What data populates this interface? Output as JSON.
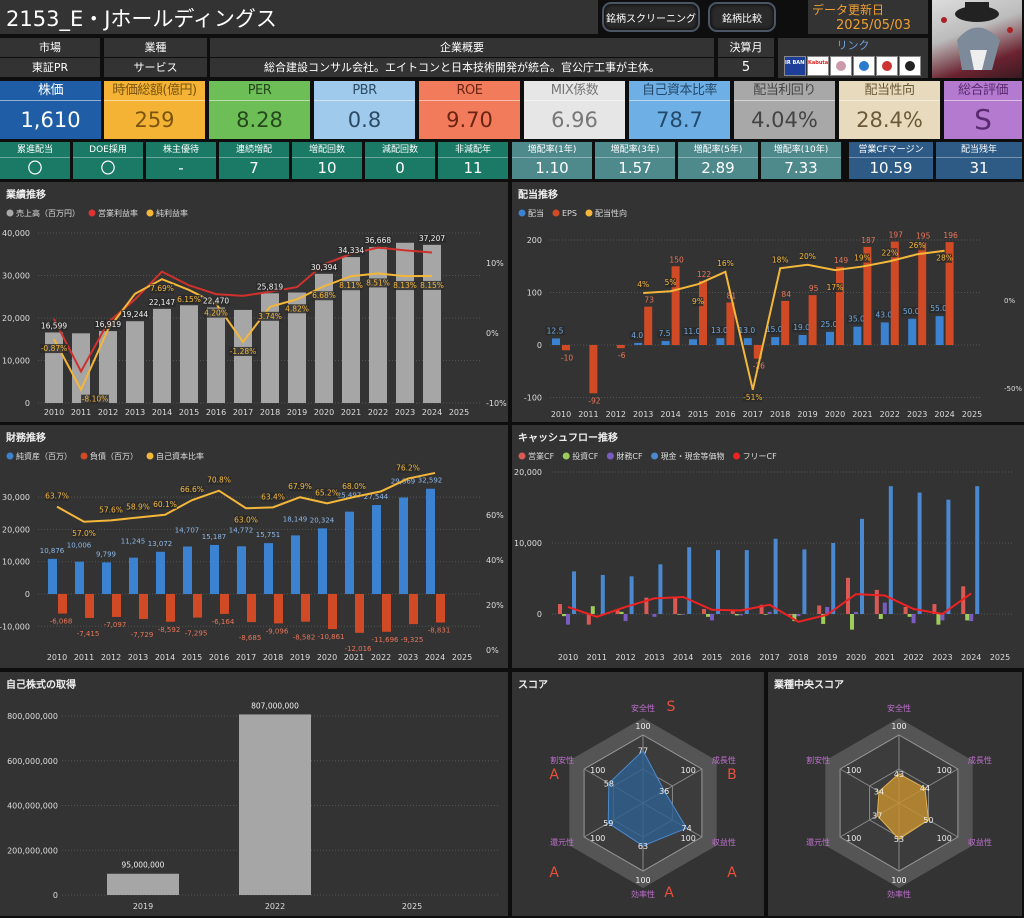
{
  "header": {
    "title": "2153_E・Jホールディングス",
    "screening_button": "銘柄スクリーニング",
    "compare_button": "銘柄比較",
    "update_label": "データ更新日",
    "update_date": "2025/05/03"
  },
  "info": {
    "market_label": "市場",
    "market": "東証PR",
    "industry_label": "業種",
    "industry": "サービス",
    "overview_label": "企業概要",
    "overview": "総合建設コンサル会社。エイトコンと日本技術開発が統合。官公庁工事が主体。",
    "fiscal_label": "決算月",
    "fiscal": "5",
    "links_label": "リンク",
    "links": [
      "IR BANK",
      "Kabutan",
      "minkabu",
      "chart",
      "nikkei",
      "kabutan-yutai"
    ]
  },
  "metrics": [
    {
      "label": "株価",
      "value": "1,610",
      "bg": "#1f5ea6",
      "fg": "#ffffff"
    },
    {
      "label": "時価総額(億円)",
      "value": "259",
      "bg": "#f4b334",
      "fg": "#7a5410"
    },
    {
      "label": "PER",
      "value": "8.28",
      "bg": "#6dbe57",
      "fg": "#24481c"
    },
    {
      "label": "PBR",
      "value": "0.8",
      "bg": "#9fcaeb",
      "fg": "#2c4b66"
    },
    {
      "label": "ROE",
      "value": "9.70",
      "bg": "#f27b5c",
      "fg": "#6b2414"
    },
    {
      "label": "MIX係数",
      "value": "6.96",
      "bg": "#e6e6e6",
      "fg": "#777777"
    },
    {
      "label": "自己資本比率",
      "value": "78.7",
      "bg": "#6eb0e6",
      "fg": "#24486a"
    },
    {
      "label": "配当利回り",
      "value": "4.04%",
      "bg": "#a8a8a8",
      "fg": "#444444"
    },
    {
      "label": "配当性向",
      "value": "28.4%",
      "bg": "#e8dbbd",
      "fg": "#6a5a38"
    },
    {
      "label": "総合評価",
      "value": "S",
      "bg": "#b47ad0",
      "fg": "#5a2a70"
    }
  ],
  "stats": [
    {
      "label": "累進配当",
      "value": "〇",
      "bg": "#1b7a66"
    },
    {
      "label": "DOE採用",
      "value": "〇",
      "bg": "#1b7a66"
    },
    {
      "label": "株主優待",
      "value": "-",
      "bg": "#1b7a66"
    },
    {
      "label": "連続増配",
      "value": "7",
      "bg": "#1b7a66"
    },
    {
      "label": "増配回数",
      "value": "10",
      "bg": "#1b7a66"
    },
    {
      "label": "減配回数",
      "value": "0",
      "bg": "#1b7a66"
    },
    {
      "label": "非減配年",
      "value": "11",
      "bg": "#1b7a66"
    },
    {
      "label": "増配率(1年)",
      "value": "1.10",
      "bg": "#4e898c"
    },
    {
      "label": "増配率(3年)",
      "value": "1.57",
      "bg": "#4e898c"
    },
    {
      "label": "増配率(5年)",
      "value": "2.89",
      "bg": "#4e898c"
    },
    {
      "label": "増配率(10年)",
      "value": "7.33",
      "bg": "#4e898c"
    },
    {
      "label": "営業CFマージン",
      "value": "10.59",
      "bg": "#2e5a86"
    },
    {
      "label": "配当残年",
      "value": "31",
      "bg": "#2e5a86"
    }
  ],
  "chart_data": [
    {
      "id": "performance",
      "type": "bar",
      "title": "業績推移",
      "categories": [
        "2010",
        "2011",
        "2012",
        "2013",
        "2014",
        "2015",
        "2016",
        "2017",
        "2018",
        "2019",
        "2020",
        "2021",
        "2022",
        "2023",
        "2024",
        "2025"
      ],
      "legend": [
        "売上高（百万円）",
        "営業利益率",
        "純利益率"
      ],
      "yticks": [
        "0",
        "10,000",
        "20,000",
        "30,000",
        "40,000"
      ],
      "ylim": [
        0,
        40000
      ],
      "y2ticks": [
        "-10%",
        "0%",
        "10%"
      ],
      "y2lim": [
        -10,
        10
      ],
      "sales": [
        16599,
        16400,
        16919,
        19244,
        22147,
        23000,
        22470,
        21900,
        25819,
        26000,
        30394,
        34334,
        36668,
        37700,
        37207,
        null
      ],
      "sales_labels": [
        "16,599",
        "",
        "16,919",
        "19,244",
        "22,147",
        "",
        "22,470",
        "",
        "25,819",
        "",
        "30,394",
        "34,334",
        "36,668",
        "",
        "37,207",
        ""
      ],
      "op_margin": [
        2.01,
        -5.5,
        1.5,
        4.8,
        8.77,
        6.81,
        5.56,
        5.3,
        5.9,
        6.56,
        9.82,
        11.3,
        12.2,
        11.8,
        11.5,
        null
      ],
      "net_margin": [
        -0.87,
        -8.1,
        0.5,
        5.6,
        7.69,
        6.15,
        4.2,
        -1.28,
        3.74,
        4.82,
        6.68,
        8.11,
        8.51,
        8.13,
        8.15,
        null
      ],
      "net_labels": [
        "-0.87%",
        "-8.10%",
        "",
        "",
        "7.69%",
        "6.15%",
        "4.20%",
        "-1.28%",
        "3.74%",
        "4.82%",
        "6.68%",
        "8.11%",
        "8.51%",
        "8.13%",
        "8.15%",
        ""
      ]
    },
    {
      "id": "dividend",
      "type": "bar",
      "title": "配当推移",
      "categories": [
        "2010",
        "2011",
        "2012",
        "2013",
        "2014",
        "2015",
        "2016",
        "2017",
        "2018",
        "2019",
        "2020",
        "2021",
        "2022",
        "2023",
        "2024",
        "2025"
      ],
      "legend": [
        "配当",
        "EPS",
        "配当性向"
      ],
      "yticks": [
        "-100",
        "0",
        "100",
        "200"
      ],
      "ylim": [
        -100,
        200
      ],
      "y2ticks": [
        "-50%",
        "0%"
      ],
      "dividend": [
        12.5,
        0,
        0,
        4.0,
        7.5,
        11.0,
        13.0,
        13.0,
        15.0,
        19.0,
        25.0,
        35.0,
        43.0,
        50.0,
        55.0,
        null
      ],
      "dividend_labels": [
        "12.5",
        "",
        "",
        "4.0",
        "7.5",
        "11.0",
        "13.0",
        "13.0",
        "15.0",
        "19.0",
        "25.0",
        "35.0",
        "43.0",
        "50.0",
        "55.0",
        ""
      ],
      "eps": [
        -10,
        -92,
        -6,
        73,
        150,
        122,
        81,
        -26,
        84,
        95,
        149,
        187,
        197,
        195,
        196,
        null
      ],
      "payout": [
        null,
        null,
        null,
        4,
        5,
        9,
        16,
        -51,
        18,
        20,
        17,
        19,
        22,
        26,
        28,
        null
      ]
    },
    {
      "id": "finance",
      "type": "bar",
      "title": "財務推移",
      "categories": [
        "2010",
        "2011",
        "2012",
        "2013",
        "2014",
        "2015",
        "2016",
        "2017",
        "2018",
        "2019",
        "2020",
        "2021",
        "2022",
        "2023",
        "2024",
        "2025"
      ],
      "legend": [
        "純資産（百万）",
        "負債（百万）",
        "自己資本比率"
      ],
      "yticks": [
        "-10,000",
        "0",
        "10,000",
        "20,000",
        "30,000"
      ],
      "y2ticks": [
        "0%",
        "20%",
        "40%",
        "60%"
      ],
      "net_assets": [
        10876,
        10006,
        9799,
        11245,
        13072,
        14707,
        15187,
        14772,
        15751,
        18149,
        20324,
        25497,
        27544,
        29869,
        32592,
        null
      ],
      "liabilities": [
        -6068,
        -7415,
        -7097,
        -7729,
        -8592,
        -7295,
        -6164,
        -8685,
        -9096,
        -8582,
        -10861,
        -12016,
        -11696,
        -9325,
        -8831,
        null
      ],
      "equity_ratio": [
        63.7,
        57.0,
        57.6,
        58.9,
        60.1,
        66.6,
        70.8,
        63.0,
        63.4,
        67.9,
        65.2,
        68.0,
        70.5,
        76.2,
        78.7,
        null
      ],
      "equity_labels": [
        "63.7%",
        "57.0%",
        "57.6%",
        "58.9%",
        "60.1%",
        "66.6%",
        "70.8%",
        "63.0%",
        "63.4%",
        "67.9%",
        "65.2%",
        "68.0%",
        "",
        "76.2%",
        "",
        ""
      ]
    },
    {
      "id": "cashflow",
      "type": "bar",
      "title": "キャッシュフロー推移",
      "categories": [
        "2010",
        "2011",
        "2012",
        "2013",
        "2014",
        "2015",
        "2016",
        "2017",
        "2018",
        "2019",
        "2020",
        "2021",
        "2022",
        "2023",
        "2024",
        "2025"
      ],
      "legend": [
        "営業CF",
        "投資CF",
        "財務CF",
        "現金・現金等価物",
        "フリーCF"
      ],
      "yticks": [
        "0",
        "10,000",
        "20,000"
      ],
      "operating": [
        1400,
        -1500,
        500,
        2300,
        2400,
        700,
        500,
        1300,
        -200,
        1200,
        5100,
        3400,
        1000,
        1400,
        3900,
        null
      ],
      "investing": [
        -300,
        1100,
        300,
        0,
        -100,
        -400,
        -200,
        -100,
        -1000,
        -1400,
        -2200,
        -700,
        -400,
        -1500,
        -900,
        null
      ],
      "financing": [
        -1500,
        0,
        -1000,
        -400,
        -100,
        -900,
        -200,
        300,
        -300,
        1000,
        300,
        1600,
        -1300,
        -900,
        -1000,
        null
      ],
      "cash": [
        6000,
        5500,
        5300,
        7000,
        9400,
        9000,
        9000,
        10600,
        9100,
        10000,
        13400,
        18000,
        17100,
        16100,
        18000,
        null
      ],
      "free_cf": [
        1000,
        -400,
        1000,
        2200,
        2400,
        600,
        500,
        1300,
        -1100,
        -100,
        2800,
        2600,
        700,
        0,
        2900,
        null
      ]
    },
    {
      "id": "buyback",
      "type": "bar",
      "title": "自己株式の取得",
      "categories": [
        "2019",
        "2022",
        "2025"
      ],
      "values": [
        95000000,
        807000000,
        null
      ],
      "value_labels": [
        "95,000,000",
        "807,000,000",
        ""
      ],
      "yticks": [
        "0",
        "200,000,000",
        "400,000,000",
        "600,000,000",
        "800,000,000"
      ],
      "ylim": [
        0,
        800000000
      ]
    },
    {
      "id": "score",
      "type": "radar",
      "title": "スコア",
      "axes": [
        "安全性",
        "成長性",
        "収益性",
        "効率性",
        "還元性",
        "割安性"
      ],
      "values": [
        77,
        36,
        74,
        63,
        59,
        58
      ],
      "grades": [
        "S",
        "B",
        "A",
        "A",
        "A",
        "A"
      ],
      "max_label": "100"
    },
    {
      "id": "industry_score",
      "type": "radar",
      "title": "業種中央スコア",
      "axes": [
        "安全性",
        "成長性",
        "収益性",
        "効率性",
        "還元性",
        "割安性"
      ],
      "values": [
        43,
        44,
        50,
        53,
        37,
        34
      ],
      "max_label": "100"
    }
  ]
}
